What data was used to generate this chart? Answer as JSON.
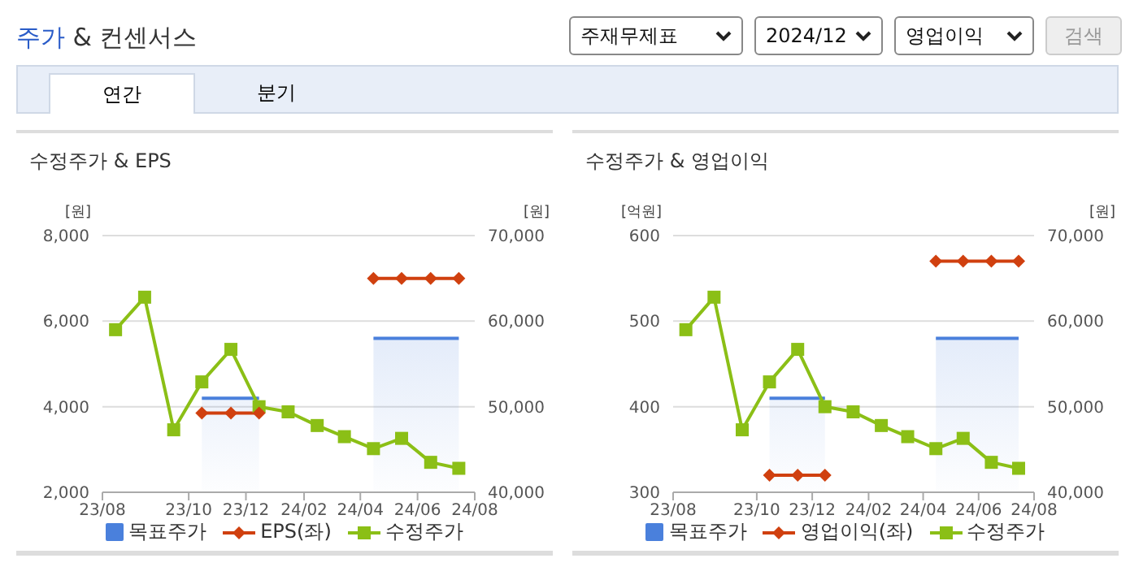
{
  "chart_data": [
    {
      "type": "other",
      "title": "주가 & 컨센서스",
      "annotations": [
        "주재무제표",
        "2024/12",
        "영업이익",
        "검색",
        "연간",
        "분기"
      ]
    },
    {
      "type": "line",
      "title": "수정주가 & EPS",
      "ylabel": "[원]",
      "y2label": "[원]",
      "x": [
        "2023-07-15",
        "2023-08-15",
        "2023-09-15",
        "2023-10-15",
        "2023-11-15",
        "2023-12-15",
        "2024-01-15",
        "2024-02-15",
        "2024-03-15",
        "2024-04-15",
        "2024-05-15",
        "2024-06-15",
        "2024-07-15"
      ],
      "xlim": [
        "2023-07-01",
        "2024-08-01"
      ],
      "xticks": [
        {
          "value": "2023-07-01",
          "label": "23/08"
        },
        {
          "value": "2023-10-01",
          "label": "23/10"
        },
        {
          "value": "2023-12-01",
          "label": "23/12"
        },
        {
          "value": "2024-02-01",
          "label": "24/02"
        },
        {
          "value": "2024-04-01",
          "label": "24/04"
        },
        {
          "value": "2024-06-01",
          "label": "24/06"
        },
        {
          "value": "2024-08-01",
          "label": "24/08"
        }
      ],
      "ylim": [
        2000,
        8000
      ],
      "yticks": [
        {
          "value": 2000,
          "label": "2,000"
        },
        {
          "value": 4000,
          "label": "4,000"
        },
        {
          "value": 6000,
          "label": "6,000"
        },
        {
          "value": 8000,
          "label": "8,000"
        }
      ],
      "y2lim": [
        40000,
        70000
      ],
      "y2ticks": [
        {
          "value": 40000,
          "label": "40,000"
        },
        {
          "value": 50000,
          "label": "50,000"
        },
        {
          "value": 60000,
          "label": "60,000"
        },
        {
          "value": 70000,
          "label": "70,000"
        }
      ],
      "grid": "y",
      "legend": "bottom",
      "series": [
        {
          "name": "목표주가",
          "type": "area",
          "axis": "y2",
          "color": "#4a80dc",
          "values": [
            null,
            null,
            null,
            51000,
            51000,
            51000,
            null,
            null,
            null,
            58000,
            58000,
            58000,
            58000
          ]
        },
        {
          "name": "EPS(좌)",
          "type": "line",
          "color": "#d0400f",
          "marker": "diamond",
          "values": [
            null,
            null,
            null,
            3850,
            3850,
            3850,
            null,
            null,
            null,
            7000,
            7000,
            7000,
            7000
          ]
        },
        {
          "name": "수정주가",
          "type": "line",
          "axis": "y2",
          "color": "#8bbf16",
          "marker": "square",
          "values": [
            59000,
            62800,
            47300,
            52900,
            56700,
            50000,
            49400,
            47800,
            46500,
            45100,
            46300,
            43500,
            42800
          ]
        }
      ]
    },
    {
      "type": "line",
      "title": "수정주가 & 영업이익",
      "ylabel": "[억원]",
      "y2label": "[원]",
      "x": [
        "2023-07-15",
        "2023-08-15",
        "2023-09-15",
        "2023-10-15",
        "2023-11-15",
        "2023-12-15",
        "2024-01-15",
        "2024-02-15",
        "2024-03-15",
        "2024-04-15",
        "2024-05-15",
        "2024-06-15",
        "2024-07-15"
      ],
      "xlim": [
        "2023-07-01",
        "2024-08-01"
      ],
      "xticks": [
        {
          "value": "2023-07-01",
          "label": "23/08"
        },
        {
          "value": "2023-10-01",
          "label": "23/10"
        },
        {
          "value": "2023-12-01",
          "label": "23/12"
        },
        {
          "value": "2024-02-01",
          "label": "24/02"
        },
        {
          "value": "2024-04-01",
          "label": "24/04"
        },
        {
          "value": "2024-06-01",
          "label": "24/06"
        },
        {
          "value": "2024-08-01",
          "label": "24/08"
        }
      ],
      "ylim": [
        300,
        600
      ],
      "yticks": [
        300,
        400,
        500,
        600
      ],
      "y2lim": [
        40000,
        70000
      ],
      "y2ticks": [
        {
          "value": 40000,
          "label": "40,000"
        },
        {
          "value": 50000,
          "label": "50,000"
        },
        {
          "value": 60000,
          "label": "60,000"
        },
        {
          "value": 70000,
          "label": "70,000"
        }
      ],
      "grid": "y",
      "legend": "bottom",
      "series": [
        {
          "name": "목표주가",
          "type": "area",
          "axis": "y2",
          "color": "#4a80dc",
          "values": [
            null,
            null,
            null,
            51000,
            51000,
            51000,
            null,
            null,
            null,
            58000,
            58000,
            58000,
            58000
          ]
        },
        {
          "name": "영업이익(좌)",
          "type": "line",
          "color": "#d0400f",
          "marker": "diamond",
          "values": [
            null,
            null,
            null,
            320,
            320,
            320,
            null,
            null,
            null,
            570,
            570,
            570,
            570
          ]
        },
        {
          "name": "수정주가",
          "type": "line",
          "axis": "y2",
          "color": "#8bbf16",
          "marker": "square",
          "values": [
            59000,
            62800,
            47300,
            52900,
            56700,
            50000,
            49400,
            47800,
            46500,
            45100,
            46300,
            43500,
            42800
          ]
        }
      ]
    }
  ]
}
